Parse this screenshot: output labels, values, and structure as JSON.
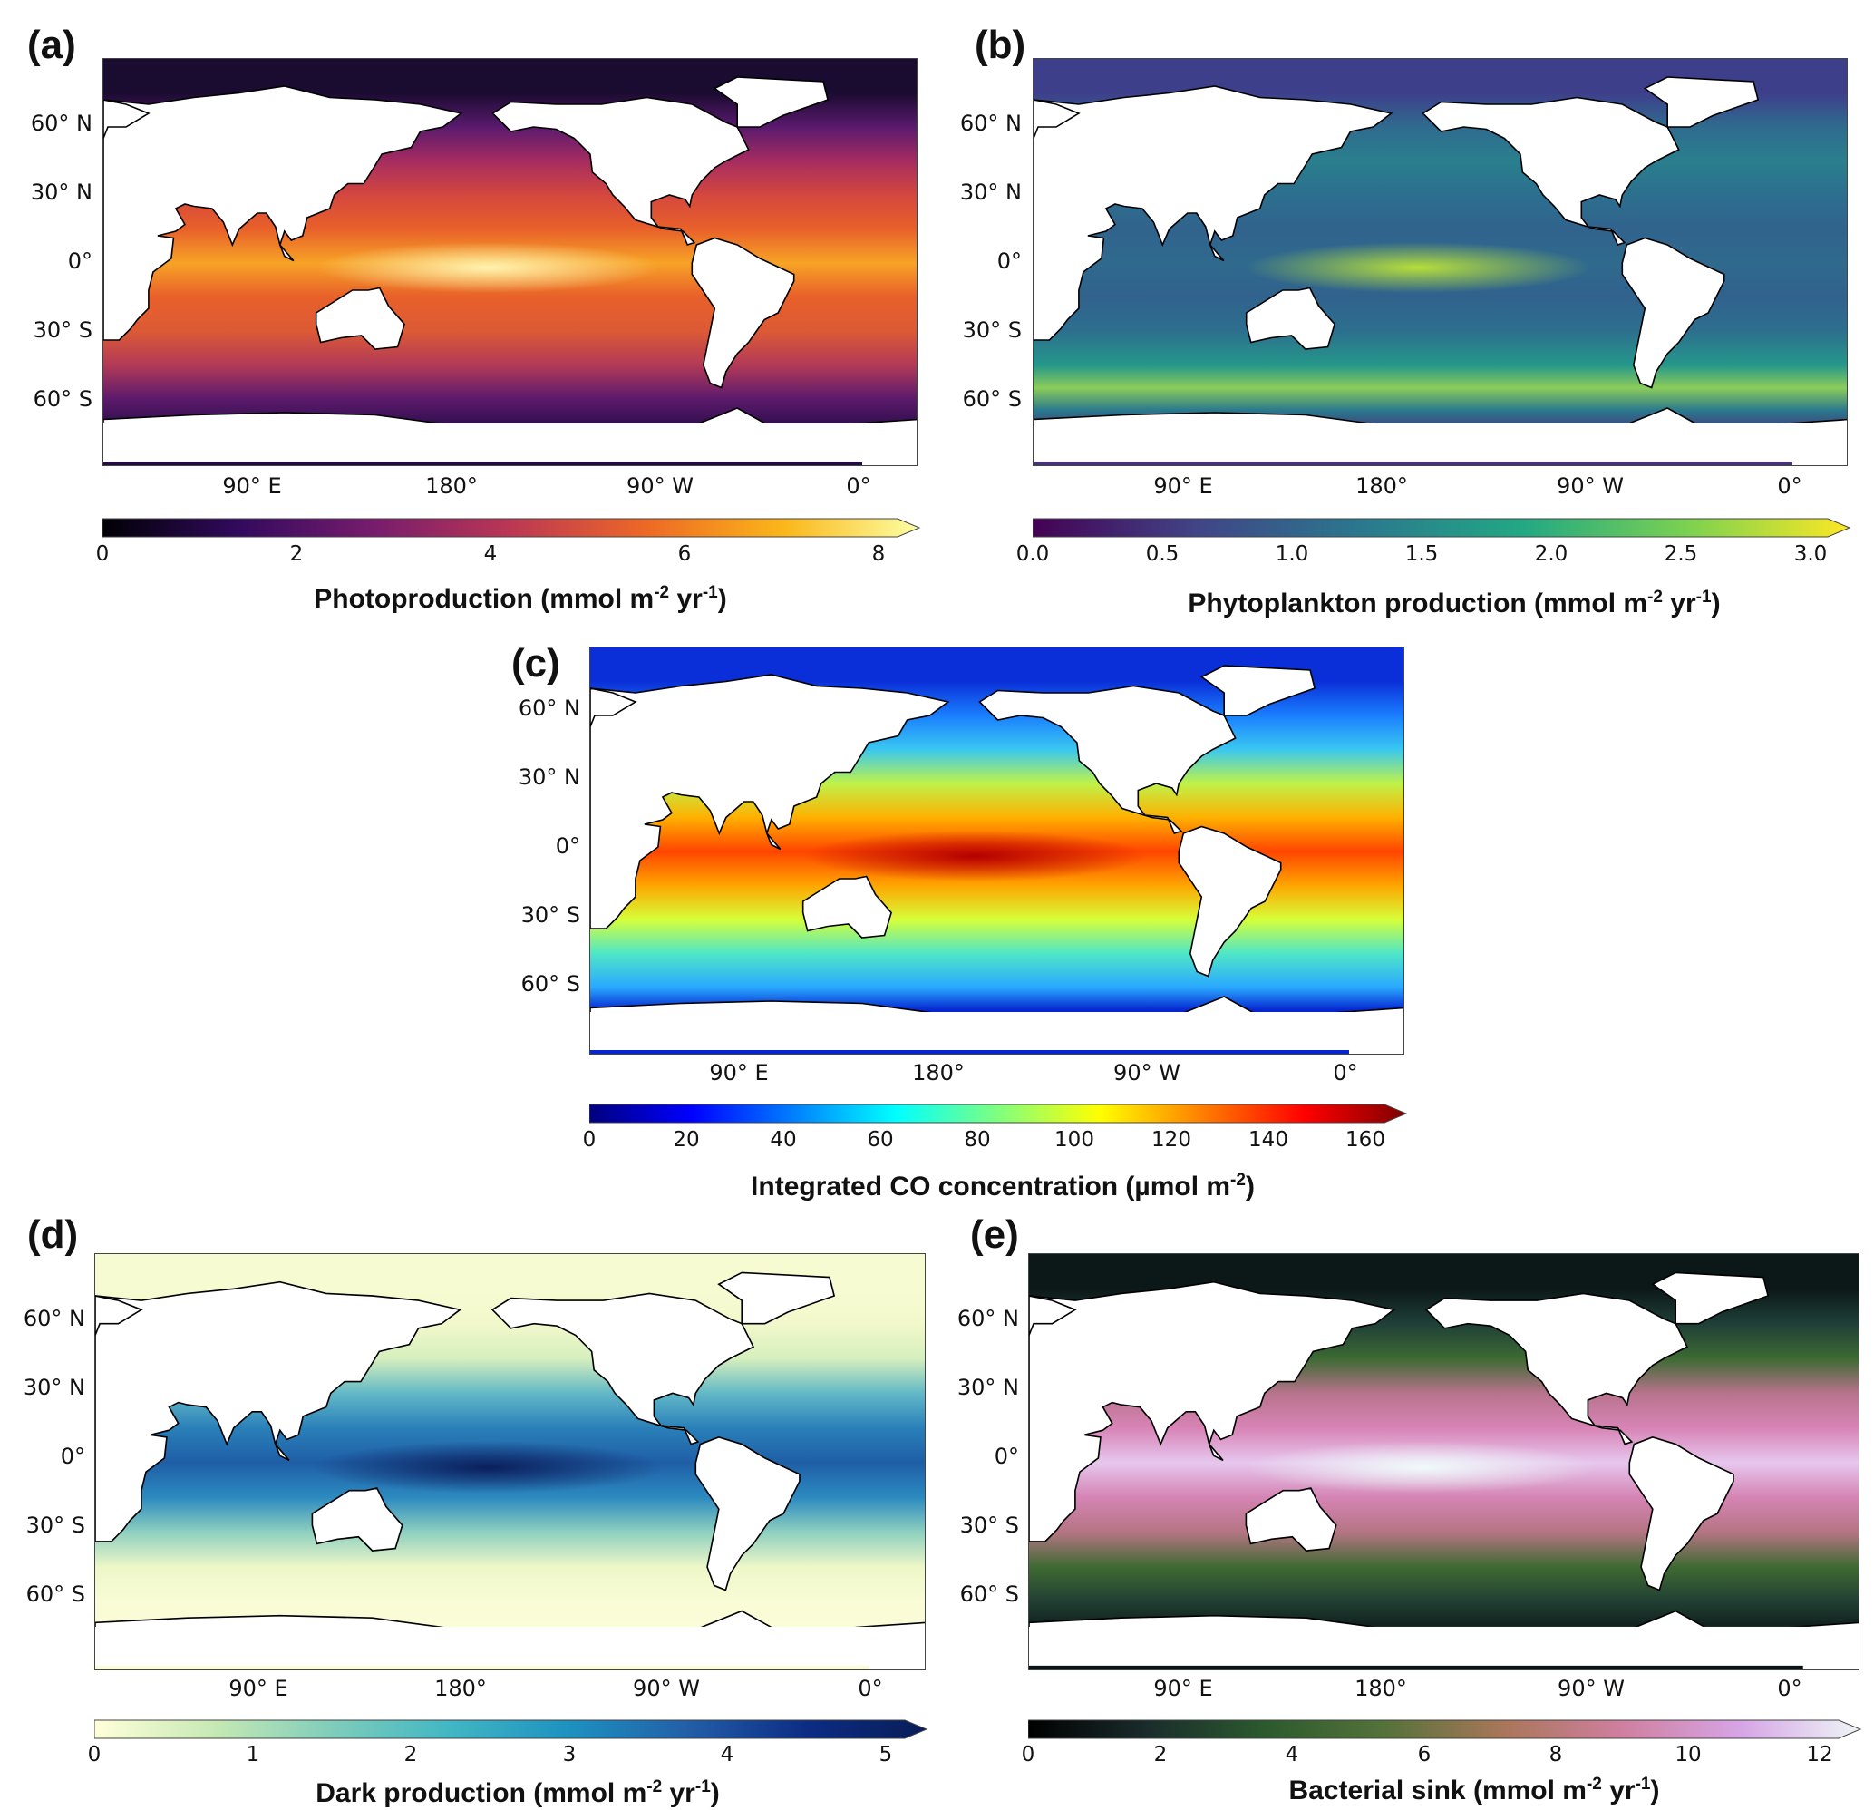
{
  "panels": [
    {
      "id": "a",
      "label": "(a)",
      "title_main": "Photoproduction (mmol m",
      "title_sup1": "-2",
      "title_mid": " yr",
      "title_sup2": "-1",
      "title_end": ")",
      "lat_labels": [
        "60° N",
        "30° N",
        "0°",
        "30° S",
        "60° S"
      ],
      "lon_labels": [
        "90° E",
        "180°",
        "90° W",
        "0°"
      ],
      "cbar_ticks": [
        "0",
        "2",
        "4",
        "6",
        "8"
      ],
      "colormap": [
        "#000004",
        "#320a5e",
        "#781c6d",
        "#bb3754",
        "#ed6925",
        "#fbb61a",
        "#fcffa4"
      ],
      "ocean_bands": [
        {
          "lat": 75,
          "color": "#1a0b30"
        },
        {
          "lat": 60,
          "color": "#5a1a6e"
        },
        {
          "lat": 45,
          "color": "#a52c60"
        },
        {
          "lat": 30,
          "color": "#d4473f"
        },
        {
          "lat": 15,
          "color": "#e8602a"
        },
        {
          "lat": 0,
          "color": "#f7a326"
        },
        {
          "lat": -15,
          "color": "#e8602a"
        },
        {
          "lat": -30,
          "color": "#dc5a35"
        },
        {
          "lat": -45,
          "color": "#b23a57"
        },
        {
          "lat": -60,
          "color": "#5c1a6c"
        },
        {
          "lat": -75,
          "color": "#250b45"
        }
      ],
      "highlight_color": "#fff3b0"
    },
    {
      "id": "b",
      "label": "(b)",
      "title_main": "Phytoplankton production (mmol m",
      "title_sup1": "-2",
      "title_mid": " yr",
      "title_sup2": "-1",
      "title_end": ")",
      "lat_labels": [
        "60° N",
        "30° N",
        "0°",
        "30° S",
        "60° S"
      ],
      "lon_labels": [
        "90° E",
        "180°",
        "90° W",
        "0°"
      ],
      "cbar_ticks": [
        "0.0",
        "0.5",
        "1.0",
        "1.5",
        "2.0",
        "2.5",
        "3.0"
      ],
      "colormap": [
        "#440154",
        "#414487",
        "#2a788e",
        "#22a884",
        "#7ad151",
        "#fde725"
      ],
      "ocean_bands": [
        {
          "lat": 75,
          "color": "#3e3f8b"
        },
        {
          "lat": 60,
          "color": "#2f6b8e"
        },
        {
          "lat": 45,
          "color": "#2a7f8d"
        },
        {
          "lat": 30,
          "color": "#2c6f8e"
        },
        {
          "lat": 15,
          "color": "#31638d"
        },
        {
          "lat": 0,
          "color": "#2f6a8d"
        },
        {
          "lat": -15,
          "color": "#31628d"
        },
        {
          "lat": -30,
          "color": "#2d6f8e"
        },
        {
          "lat": -45,
          "color": "#25978a"
        },
        {
          "lat": -55,
          "color": "#8ccc5a"
        },
        {
          "lat": -65,
          "color": "#2a798d"
        },
        {
          "lat": -75,
          "color": "#45327a"
        }
      ],
      "highlight_color": "#b7de3a"
    },
    {
      "id": "c",
      "label": "(c)",
      "title_main": "Integrated CO concentration (µmol m",
      "title_sup1": "-2",
      "title_mid": "",
      "title_sup2": "",
      "title_end": ")",
      "lat_labels": [
        "60° N",
        "30° N",
        "0°",
        "30° S",
        "60° S"
      ],
      "lon_labels": [
        "90° E",
        "180°",
        "90° W",
        "0°"
      ],
      "cbar_ticks": [
        "0",
        "20",
        "40",
        "60",
        "80",
        "100",
        "120",
        "140",
        "160"
      ],
      "colormap": [
        "#00007f",
        "#0000ff",
        "#007fff",
        "#00ffff",
        "#7fff7f",
        "#ffff00",
        "#ff7f00",
        "#ff0000",
        "#7f0000"
      ],
      "ocean_bands": [
        {
          "lat": 75,
          "color": "#0a2fd8"
        },
        {
          "lat": 60,
          "color": "#1a7fff"
        },
        {
          "lat": 45,
          "color": "#3ac8f0"
        },
        {
          "lat": 30,
          "color": "#bff24a"
        },
        {
          "lat": 15,
          "color": "#ffb000"
        },
        {
          "lat": 0,
          "color": "#ff4500"
        },
        {
          "lat": -15,
          "color": "#ffa500"
        },
        {
          "lat": -30,
          "color": "#d6ff3a"
        },
        {
          "lat": -45,
          "color": "#4fe6c8"
        },
        {
          "lat": -60,
          "color": "#2aa8ff"
        },
        {
          "lat": -70,
          "color": "#0626d0"
        }
      ],
      "highlight_color": "#b40000"
    },
    {
      "id": "d",
      "label": "(d)",
      "title_main": "Dark production (mmol m",
      "title_sup1": "-2",
      "title_mid": " yr",
      "title_sup2": "-1",
      "title_end": ")",
      "lat_labels": [
        "60° N",
        "30° N",
        "0°",
        "30° S",
        "60° S"
      ],
      "lon_labels": [
        "90° E",
        "180°",
        "90° W",
        "0°"
      ],
      "cbar_ticks": [
        "0",
        "1",
        "2",
        "3",
        "4",
        "5"
      ],
      "colormap": [
        "#ffffd9",
        "#c7e9b4",
        "#7fcdbb",
        "#41b6c4",
        "#1d91c0",
        "#225ea8",
        "#0c2c84",
        "#081d58"
      ],
      "ocean_bands": [
        {
          "lat": 75,
          "color": "#f7fbd2"
        },
        {
          "lat": 60,
          "color": "#f2f8cc"
        },
        {
          "lat": 45,
          "color": "#d6efbd"
        },
        {
          "lat": 30,
          "color": "#63b9c6"
        },
        {
          "lat": 15,
          "color": "#2a80b9"
        },
        {
          "lat": 0,
          "color": "#1f5ea6"
        },
        {
          "lat": -15,
          "color": "#2c8ac0"
        },
        {
          "lat": -30,
          "color": "#8fd0bf"
        },
        {
          "lat": -45,
          "color": "#edf7c8"
        },
        {
          "lat": -60,
          "color": "#f9fcd6"
        },
        {
          "lat": -75,
          "color": "#fbfdd8"
        }
      ],
      "highlight_color": "#0b1f5c"
    },
    {
      "id": "e",
      "label": "(e)",
      "title_main": "Bacterial sink (mmol m",
      "title_sup1": "-2",
      "title_mid": " yr",
      "title_sup2": "-1",
      "title_end": ")",
      "lat_labels": [
        "60° N",
        "30° N",
        "0°",
        "30° S",
        "60° S"
      ],
      "lon_labels": [
        "90° E",
        "180°",
        "90° W",
        "0°"
      ],
      "cbar_ticks": [
        "0",
        "2",
        "4",
        "6",
        "8",
        "10",
        "12"
      ],
      "colormap": [
        "#000000",
        "#1a2c2c",
        "#2c5a2e",
        "#55723a",
        "#a9765a",
        "#d07fa0",
        "#d6a5e6",
        "#eef6f6"
      ],
      "ocean_bands": [
        {
          "lat": 75,
          "color": "#0c1818"
        },
        {
          "lat": 60,
          "color": "#1f3f38"
        },
        {
          "lat": 45,
          "color": "#3c6a32"
        },
        {
          "lat": 30,
          "color": "#b7738c"
        },
        {
          "lat": 15,
          "color": "#d884b6"
        },
        {
          "lat": 0,
          "color": "#e6c7ee"
        },
        {
          "lat": -15,
          "color": "#d584b4"
        },
        {
          "lat": -30,
          "color": "#b47583"
        },
        {
          "lat": -45,
          "color": "#3f6a32"
        },
        {
          "lat": -60,
          "color": "#213f34"
        },
        {
          "lat": -75,
          "color": "#0a1414"
        }
      ],
      "highlight_color": "#f0fafa"
    }
  ],
  "land_color": "#ffffff",
  "coast_color": "#000000",
  "antarctica_color": "#ffffff"
}
